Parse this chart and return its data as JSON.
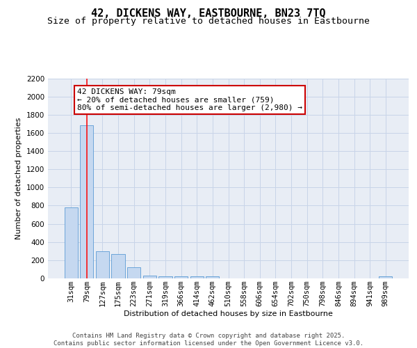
{
  "title_line1": "42, DICKENS WAY, EASTBOURNE, BN23 7TQ",
  "title_line2": "Size of property relative to detached houses in Eastbourne",
  "xlabel": "Distribution of detached houses by size in Eastbourne",
  "ylabel": "Number of detached properties",
  "categories": [
    "31sqm",
    "79sqm",
    "127sqm",
    "175sqm",
    "223sqm",
    "271sqm",
    "319sqm",
    "366sqm",
    "414sqm",
    "462sqm",
    "510sqm",
    "558sqm",
    "606sqm",
    "654sqm",
    "702sqm",
    "750sqm",
    "798sqm",
    "846sqm",
    "894sqm",
    "941sqm",
    "989sqm"
  ],
  "values": [
    780,
    1680,
    300,
    265,
    120,
    30,
    25,
    20,
    22,
    25,
    0,
    0,
    0,
    0,
    0,
    0,
    0,
    0,
    0,
    0,
    20
  ],
  "bar_color": "#c5d8f0",
  "bar_edge_color": "#5b9bd5",
  "annotation_text": "42 DICKENS WAY: 79sqm\n← 20% of detached houses are smaller (759)\n80% of semi-detached houses are larger (2,980) →",
  "annotation_box_color": "#ffffff",
  "annotation_box_edge_color": "#cc0000",
  "ylim": [
    0,
    2200
  ],
  "yticks": [
    0,
    200,
    400,
    600,
    800,
    1000,
    1200,
    1400,
    1600,
    1800,
    2000,
    2200
  ],
  "grid_color": "#c8d4e8",
  "background_color": "#e8edf5",
  "footer_text": "Contains HM Land Registry data © Crown copyright and database right 2025.\nContains public sector information licensed under the Open Government Licence v3.0.",
  "title_fontsize": 11,
  "subtitle_fontsize": 9.5,
  "axis_label_fontsize": 8,
  "tick_fontsize": 7.5,
  "annotation_fontsize": 8,
  "footer_fontsize": 6.5
}
